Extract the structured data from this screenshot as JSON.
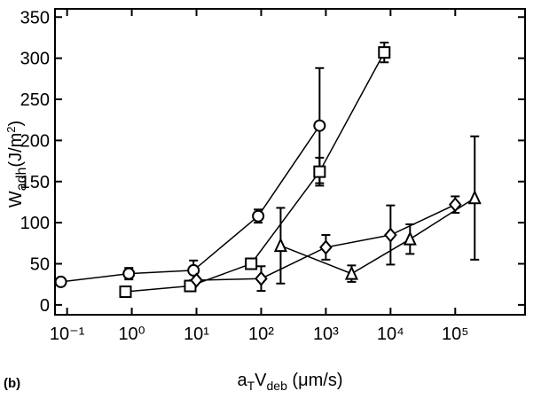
{
  "chart_data": {
    "type": "line",
    "panel_label": "(b)",
    "xlabel": [
      "a",
      "T",
      "V",
      "deb",
      " (μm/s)"
    ],
    "ylabel": [
      "W",
      "adh",
      "(J/m",
      "2",
      ")"
    ],
    "xscale": "log",
    "xlim": [
      0.065,
      1200000
    ],
    "ylim": [
      -12,
      360
    ],
    "xticks": [
      {
        "value": 0.1,
        "label": "10⁻¹"
      },
      {
        "value": 1,
        "label": "10⁰"
      },
      {
        "value": 10,
        "label": "10¹"
      },
      {
        "value": 100,
        "label": "10²"
      },
      {
        "value": 1000,
        "label": "10³"
      },
      {
        "value": 10000,
        "label": "10⁴"
      },
      {
        "value": 100000,
        "label": "10⁵"
      }
    ],
    "yticks": [
      0,
      50,
      100,
      150,
      200,
      250,
      300,
      350
    ],
    "series": [
      {
        "marker": "circle",
        "color": "#000000",
        "x": [
          0.08,
          0.9,
          9,
          90,
          800
        ],
        "values": [
          28,
          38,
          42,
          108,
          218
        ],
        "errors": [
          0,
          7,
          12,
          8,
          70
        ]
      },
      {
        "marker": "square",
        "color": "#000000",
        "x": [
          0.8,
          8,
          70,
          800,
          8000
        ],
        "values": [
          16,
          23,
          50,
          162,
          307
        ],
        "errors": [
          0,
          0,
          0,
          17,
          12
        ]
      },
      {
        "marker": "diamond",
        "color": "#000000",
        "x": [
          10,
          100,
          1000,
          10000,
          100000
        ],
        "values": [
          30,
          32,
          70,
          85,
          122
        ],
        "errors": [
          0,
          15,
          15,
          36,
          10
        ]
      },
      {
        "marker": "triangle",
        "color": "#000000",
        "x": [
          200,
          2500,
          20000,
          200000
        ],
        "values": [
          72,
          38,
          80,
          130
        ],
        "errors": [
          46,
          10,
          18,
          75
        ]
      }
    ]
  }
}
